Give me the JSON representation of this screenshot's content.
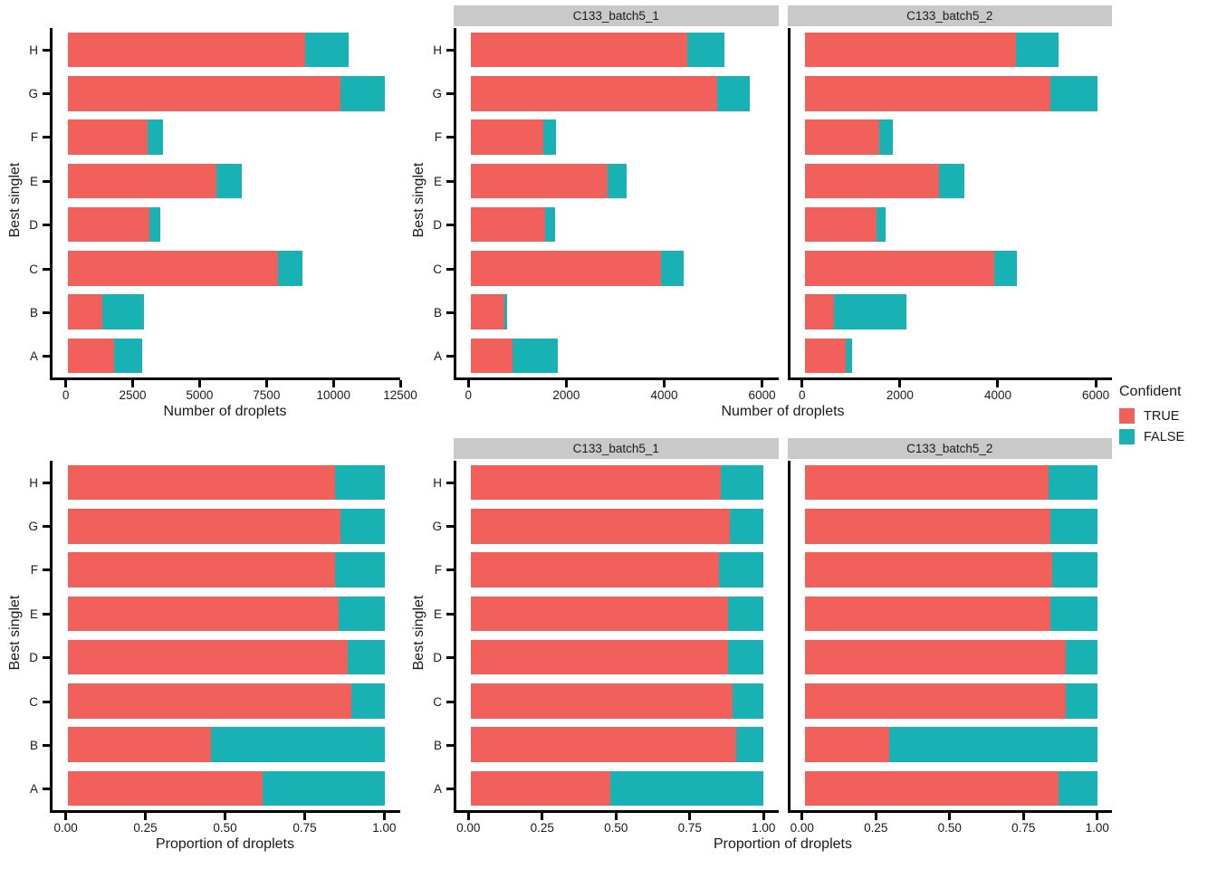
{
  "legend": {
    "title": "Confident",
    "items": [
      {
        "label": "TRUE",
        "color": "#F2605C"
      },
      {
        "label": "FALSE",
        "color": "#18B2B4"
      }
    ]
  },
  "style": {
    "true_color": "#F2605C",
    "false_color": "#18B2B4",
    "strip_bg": "#C9C9C9",
    "panel_bg": "#FFFFFF",
    "axis_color": "#000000"
  },
  "chart_data": [
    {
      "id": "counts_all",
      "type": "bar",
      "orientation": "horizontal",
      "stacked": true,
      "facet_label": null,
      "xlabel": "Number of droplets",
      "ylabel": "Best singlet",
      "categories": [
        "H",
        "G",
        "F",
        "E",
        "D",
        "C",
        "B",
        "A"
      ],
      "x_ticks": [
        {
          "v": 0,
          "label": "0"
        },
        {
          "v": 2500,
          "label": "2500"
        },
        {
          "v": 5000,
          "label": "5000"
        },
        {
          "v": 7500,
          "label": "7500"
        },
        {
          "v": 10000,
          "label": "10000"
        },
        {
          "v": 12500,
          "label": "12500"
        }
      ],
      "x_scale_max": 11900,
      "series": [
        {
          "name": "TRUE",
          "values": [
            8900,
            10250,
            3000,
            5590,
            3060,
            7900,
            1290,
            1710
          ]
        },
        {
          "name": "FALSE",
          "values": [
            1650,
            1650,
            560,
            940,
            400,
            930,
            1570,
            1070
          ]
        }
      ]
    },
    {
      "id": "counts_batch5_1",
      "type": "bar",
      "orientation": "horizontal",
      "stacked": true,
      "facet_label": "C133_batch5_1",
      "xlabel": "Number of droplets",
      "ylabel": "Best singlet",
      "categories": [
        "H",
        "G",
        "F",
        "E",
        "D",
        "C",
        "B",
        "A"
      ],
      "x_ticks": [
        {
          "v": 0,
          "label": "0"
        },
        {
          "v": 2000,
          "label": "2000"
        },
        {
          "v": 4000,
          "label": "4000"
        },
        {
          "v": 6000,
          "label": "6000"
        }
      ],
      "x_scale_max": 6030,
      "series": [
        {
          "name": "TRUE",
          "values": [
            4450,
            5080,
            1490,
            2820,
            1520,
            3910,
            680,
            850
          ]
        },
        {
          "name": "FALSE",
          "values": [
            770,
            670,
            270,
            390,
            210,
            470,
            70,
            940
          ]
        }
      ]
    },
    {
      "id": "counts_batch5_2",
      "type": "bar",
      "orientation": "horizontal",
      "stacked": true,
      "facet_label": "C133_batch5_2",
      "xlabel": "Number of droplets",
      "ylabel": null,
      "categories": [
        "H",
        "G",
        "F",
        "E",
        "D",
        "C",
        "B",
        "A"
      ],
      "x_ticks": [
        {
          "v": 0,
          "label": "0"
        },
        {
          "v": 2000,
          "label": "2000"
        },
        {
          "v": 4000,
          "label": "4000"
        },
        {
          "v": 6000,
          "label": "6000"
        }
      ],
      "x_scale_max": 6030,
      "series": [
        {
          "name": "TRUE",
          "values": [
            4360,
            5060,
            1540,
            2760,
            1480,
            3900,
            610,
            840
          ]
        },
        {
          "name": "FALSE",
          "values": [
            870,
            970,
            280,
            530,
            180,
            470,
            1490,
            130
          ]
        }
      ]
    },
    {
      "id": "proportions_all",
      "type": "bar",
      "orientation": "horizontal",
      "stacked": true,
      "facet_label": null,
      "xlabel": "Proportion of droplets",
      "ylabel": "Best singlet",
      "categories": [
        "H",
        "G",
        "F",
        "E",
        "D",
        "C",
        "B",
        "A"
      ],
      "x_ticks": [
        {
          "v": 0,
          "label": "0.00"
        },
        {
          "v": 0.25,
          "label": "0.25"
        },
        {
          "v": 0.5,
          "label": "0.50"
        },
        {
          "v": 0.75,
          "label": "0.75"
        },
        {
          "v": 1,
          "label": "1.00"
        }
      ],
      "x_scale_max": 1.0,
      "series": [
        {
          "name": "TRUE",
          "values": [
            0.844,
            0.861,
            0.843,
            0.856,
            0.884,
            0.895,
            0.451,
            0.615
          ]
        },
        {
          "name": "FALSE",
          "values": [
            0.156,
            0.139,
            0.157,
            0.144,
            0.116,
            0.105,
            0.549,
            0.385
          ]
        }
      ]
    },
    {
      "id": "proportions_batch5_1",
      "type": "bar",
      "orientation": "horizontal",
      "stacked": true,
      "facet_label": "C133_batch5_1",
      "xlabel": "Proportion of droplets",
      "ylabel": "Best singlet",
      "categories": [
        "H",
        "G",
        "F",
        "E",
        "D",
        "C",
        "B",
        "A"
      ],
      "x_ticks": [
        {
          "v": 0,
          "label": "0.00"
        },
        {
          "v": 0.25,
          "label": "0.25"
        },
        {
          "v": 0.5,
          "label": "0.50"
        },
        {
          "v": 0.75,
          "label": "0.75"
        },
        {
          "v": 1,
          "label": "1.00"
        }
      ],
      "x_scale_max": 1.0,
      "series": [
        {
          "name": "TRUE",
          "values": [
            0.852,
            0.883,
            0.847,
            0.879,
            0.879,
            0.893,
            0.907,
            0.475
          ]
        },
        {
          "name": "FALSE",
          "values": [
            0.148,
            0.117,
            0.153,
            0.121,
            0.121,
            0.107,
            0.093,
            0.525
          ]
        }
      ]
    },
    {
      "id": "proportions_batch5_2",
      "type": "bar",
      "orientation": "horizontal",
      "stacked": true,
      "facet_label": "C133_batch5_2",
      "xlabel": "Proportion of droplets",
      "ylabel": null,
      "categories": [
        "H",
        "G",
        "F",
        "E",
        "D",
        "C",
        "B",
        "A"
      ],
      "x_ticks": [
        {
          "v": 0,
          "label": "0.00"
        },
        {
          "v": 0.25,
          "label": "0.25"
        },
        {
          "v": 0.5,
          "label": "0.50"
        },
        {
          "v": 0.75,
          "label": "0.75"
        },
        {
          "v": 1,
          "label": "1.00"
        }
      ],
      "x_scale_max": 1.0,
      "series": [
        {
          "name": "TRUE",
          "values": [
            0.834,
            0.839,
            0.846,
            0.839,
            0.892,
            0.893,
            0.29,
            0.866
          ]
        },
        {
          "name": "FALSE",
          "values": [
            0.166,
            0.161,
            0.154,
            0.161,
            0.108,
            0.107,
            0.71,
            0.134
          ]
        }
      ]
    }
  ]
}
